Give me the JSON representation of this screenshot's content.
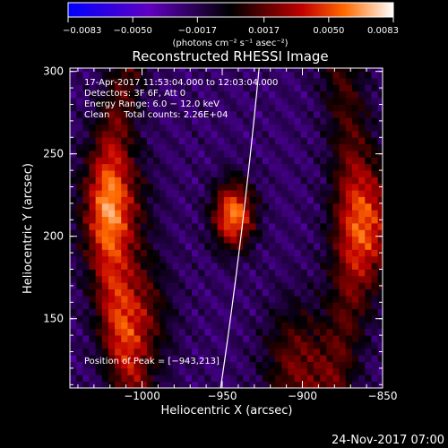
{
  "chart_data": {
    "type": "heatmap",
    "title": "Reconstructed RHESSI Image",
    "xlabel": "Heliocentric X (arcsec)",
    "ylabel": "Heliocentric Y (arcsec)",
    "xlim": [
      -1045,
      -850
    ],
    "ylim": [
      108,
      302
    ],
    "x_ticks": [
      {
        "value": -1000,
        "label": "−1000"
      },
      {
        "value": -950,
        "label": "−950"
      },
      {
        "value": -900,
        "label": "−900"
      },
      {
        "value": -850,
        "label": "−850"
      }
    ],
    "y_ticks": [
      {
        "value": 150,
        "label": "150"
      },
      {
        "value": 200,
        "label": "200"
      },
      {
        "value": 250,
        "label": "250"
      },
      {
        "value": 300,
        "label": "300"
      }
    ],
    "colorbar": {
      "min": -0.0083,
      "max": 0.0083,
      "ticks": [
        {
          "value": -0.0083,
          "label": "−0.0083"
        },
        {
          "value": -0.005,
          "label": "−0.0050"
        },
        {
          "value": -0.0017,
          "label": "−0.0017"
        },
        {
          "value": 0.0017,
          "label": "0.0017"
        },
        {
          "value": 0.005,
          "label": "0.0050"
        },
        {
          "value": 0.0083,
          "label": "0.0083"
        }
      ],
      "unit_label": "(photons cm⁻² s⁻¹ asec⁻²)"
    },
    "info_lines": [
      "17‐Apr‐2017 11:53:04.000 to 12:03:04.000",
      "Detectors: 3F 6F, Att 0",
      "Energy Range: 6.0 − 12.0 keV",
      "Clean     Total counts: 2.26E+04"
    ],
    "peak_label": "Position of Peak = [−943,213]",
    "peak_position": [
      -943,
      213
    ],
    "sources": [
      {
        "x": -943,
        "y": 213,
        "amplitude": 0.0083
      },
      {
        "x": -1018,
        "y": 218,
        "amplitude": 0.0055
      },
      {
        "x": -1004,
        "y": 150,
        "amplitude": 0.0048
      },
      {
        "x": -904,
        "y": 122,
        "amplitude": 0.0042
      },
      {
        "x": -858,
        "y": 207,
        "amplitude": 0.0052
      }
    ],
    "limb": [
      {
        "x": -951,
        "y": 108
      },
      {
        "x": -937,
        "y": 200
      },
      {
        "x": -927,
        "y": 302
      }
    ]
  },
  "footer": {
    "date": "24‐Nov‐2017 07:00"
  }
}
